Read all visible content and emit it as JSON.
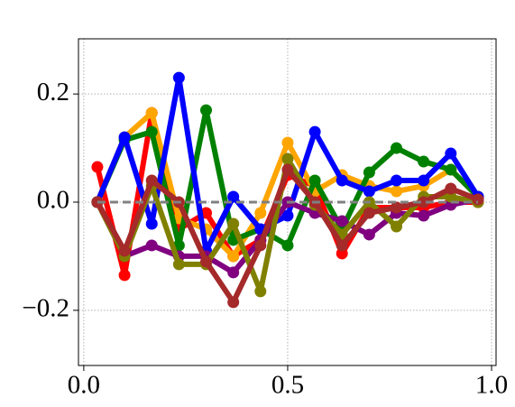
{
  "chart_data": {
    "type": "line",
    "x": [
      0.0333,
      0.1,
      0.1667,
      0.2333,
      0.3,
      0.3667,
      0.4333,
      0.5,
      0.5667,
      0.6333,
      0.7,
      0.7667,
      0.8333,
      0.9,
      0.9667
    ],
    "series": [
      {
        "color": "#ff0000",
        "values": [
          0.065,
          -0.135,
          0.165,
          -0.05,
          -0.02,
          -0.1,
          -0.07,
          0.05,
          0.03,
          -0.095,
          -0.01,
          -0.01,
          -0.01,
          0.0,
          0.0
        ]
      },
      {
        "color": "#ffa500",
        "values": [
          0.0,
          0.12,
          0.165,
          -0.03,
          -0.05,
          -0.1,
          -0.02,
          0.11,
          0.02,
          0.05,
          0.03,
          0.02,
          0.03,
          0.06,
          0.01
        ]
      },
      {
        "color": "#008000",
        "values": [
          0.0,
          0.115,
          0.13,
          -0.08,
          0.17,
          -0.07,
          -0.05,
          -0.08,
          0.04,
          -0.05,
          0.055,
          0.1,
          0.075,
          0.06,
          0.01
        ]
      },
      {
        "color": "#0000ff",
        "values": [
          0.0,
          0.12,
          -0.04,
          0.23,
          -0.09,
          0.01,
          -0.05,
          -0.025,
          0.13,
          0.04,
          0.02,
          0.04,
          0.04,
          0.09,
          0.01
        ]
      },
      {
        "color": "#800080",
        "values": [
          0.0,
          -0.1,
          -0.08,
          -0.1,
          -0.1,
          -0.13,
          -0.07,
          0.0,
          -0.02,
          -0.035,
          -0.06,
          -0.02,
          -0.025,
          -0.005,
          0.005
        ]
      },
      {
        "color": "#808000",
        "values": [
          0.0,
          -0.1,
          0.03,
          -0.115,
          -0.115,
          -0.04,
          -0.165,
          0.08,
          -0.005,
          -0.06,
          0.0,
          -0.045,
          0.01,
          0.01,
          0.0
        ]
      },
      {
        "color": "#a52a2a",
        "values": [
          0.0,
          -0.09,
          0.04,
          0.0,
          -0.11,
          -0.185,
          -0.08,
          0.06,
          0.0,
          -0.08,
          -0.02,
          -0.01,
          0.0,
          0.025,
          0.005
        ]
      },
      {
        "color": "#808080",
        "dashed": true,
        "markers": false,
        "values": [
          0,
          0,
          0,
          0,
          0,
          0,
          0,
          0,
          0,
          0,
          0,
          0,
          0,
          0,
          0
        ]
      }
    ],
    "xlim": [
      -0.013,
      1.011
    ],
    "ylim": [
      -0.302,
      0.302
    ],
    "xticks": [
      {
        "value": 0,
        "label": "0.0"
      },
      0.5,
      {
        "value": 1,
        "label": "1.0"
      }
    ],
    "yticks": [
      {
        "value": -0.2,
        "label": "−0.2"
      },
      {
        "value": 0,
        "label": "0.0"
      },
      0.2
    ],
    "grid": true
  }
}
